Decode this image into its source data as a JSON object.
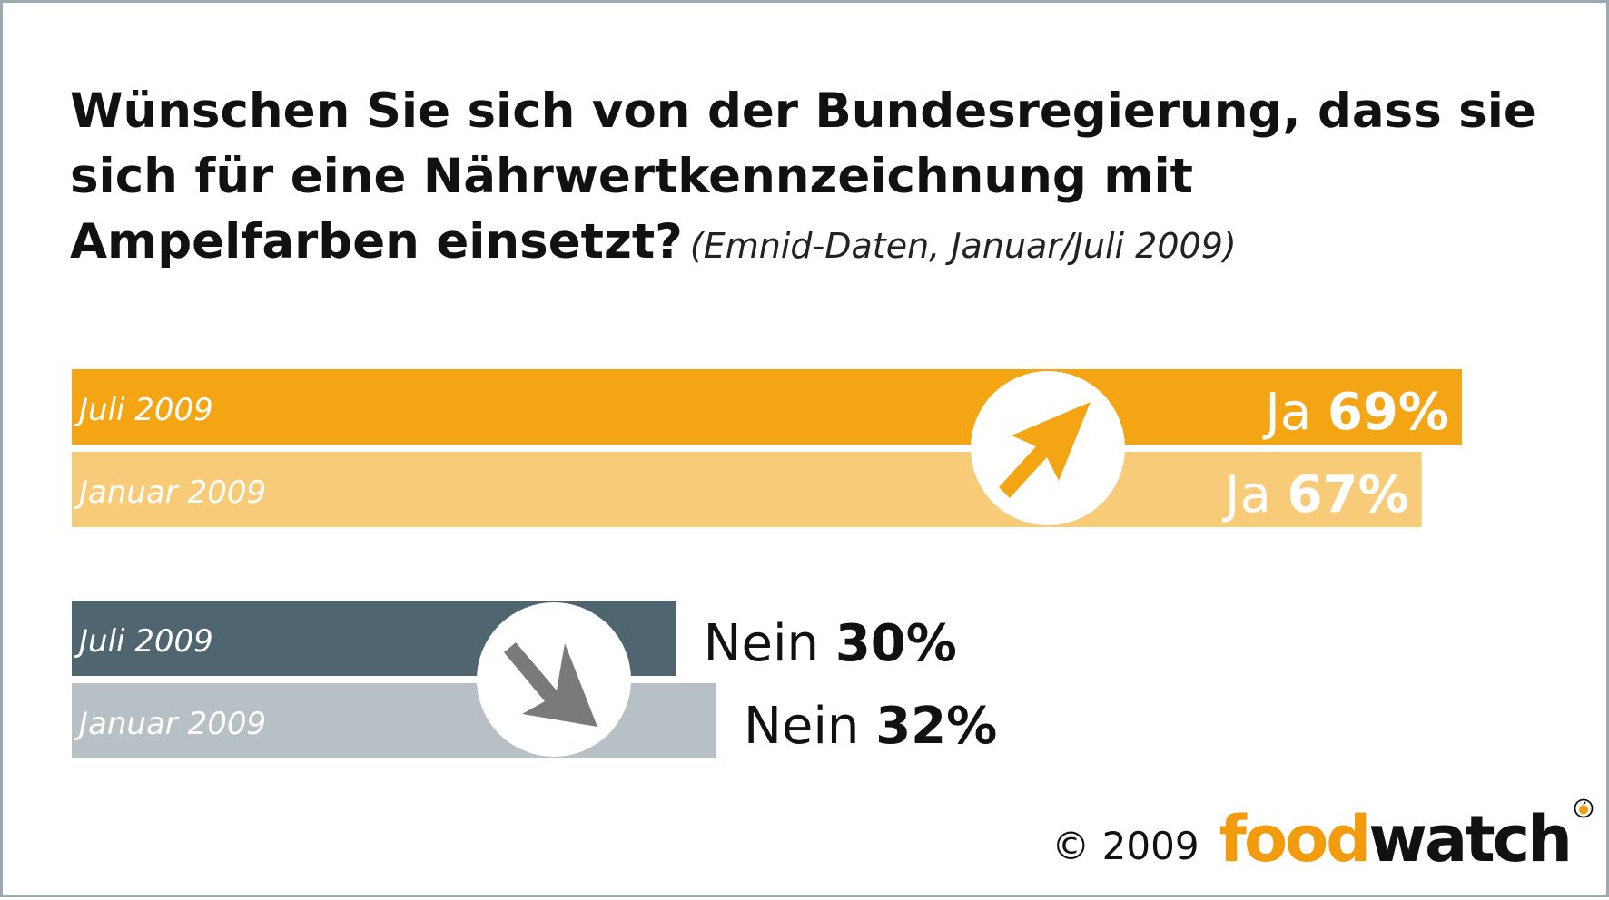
{
  "title": "Wünschen Sie sich von der Bundesregierung, dass sie sich für eine Nährwertkennzeichnung mit Ampelfarben einsetzt?",
  "subtitle": "(Emnid-Daten, Januar/Juli 2009)",
  "footer": {
    "copyright": "© 2009",
    "logo_part1": "food",
    "logo_part2": "watch",
    "logo_icon": "apple-icon"
  },
  "chart_data": {
    "type": "bar",
    "orientation": "horizontal",
    "xlim": [
      0,
      100
    ],
    "unit": "%",
    "groups": [
      {
        "answer": "Ja",
        "trend_icon": "arrow-up-right-icon",
        "bars": [
          {
            "label": "Juli 2009",
            "value": 69,
            "value_text": "69%",
            "color": "#f3a514"
          },
          {
            "label": "Januar 2009",
            "value": 67,
            "value_text": "67%",
            "color": "#f7cb78"
          }
        ],
        "arrow_color": "#f3a514"
      },
      {
        "answer": "Nein",
        "trend_icon": "arrow-down-right-icon",
        "bars": [
          {
            "label": "Juli 2009",
            "value": 30,
            "value_text": "30%",
            "color": "#4f6670"
          },
          {
            "label": "Januar 2009",
            "value": 32,
            "value_text": "32%",
            "color": "#b7c0c4"
          }
        ],
        "arrow_color": "#7a7a7a"
      }
    ],
    "colors": {
      "accent_orange": "#f3a514",
      "light_orange": "#f7cb78",
      "dark_slate": "#4f6670",
      "light_gray": "#b7c0c4"
    }
  }
}
